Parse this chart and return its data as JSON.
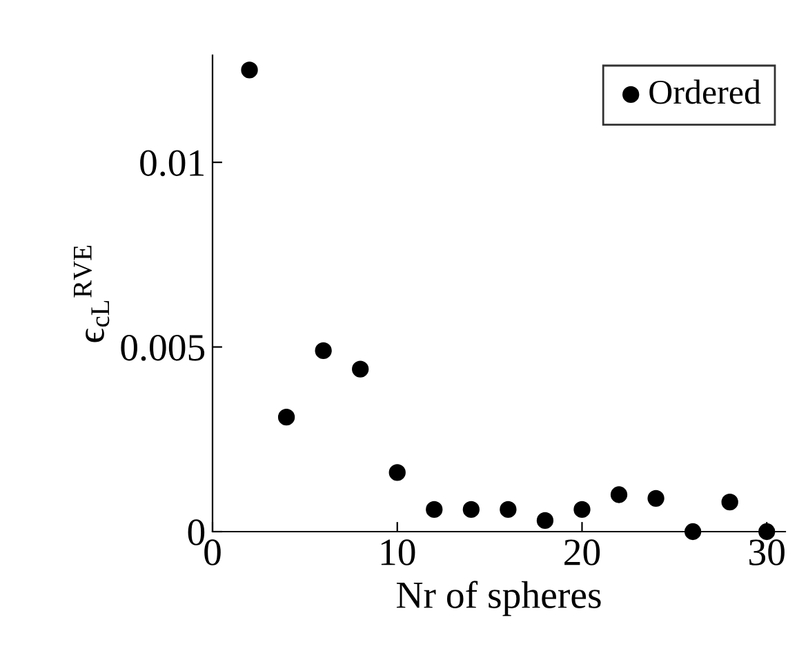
{
  "chart_data": {
    "type": "scatter",
    "xlabel": "Nr of spheres",
    "ylabel": "ϵ$_{cL}$$^{RVE}$",
    "x": [
      2,
      4,
      6,
      8,
      10,
      12,
      14,
      16,
      18,
      20,
      22,
      24,
      26,
      28,
      30
    ],
    "series": [
      {
        "name": "Ordered",
        "color": "#000000",
        "values": [
          0.0125,
          0.0031,
          0.0049,
          0.0044,
          0.0016,
          0.0006,
          0.0006,
          0.0006,
          0.0003,
          0.0006,
          0.001,
          0.0009,
          0.0,
          0.0008,
          0.0
        ]
      }
    ],
    "marker": "circle",
    "xlim": [
      0,
      31
    ],
    "ylim": [
      0,
      0.0129
    ],
    "xticks": [
      0,
      10,
      20,
      30
    ],
    "yticks": [
      0,
      0.005,
      0.01
    ],
    "grid": false,
    "legend": "top right"
  }
}
